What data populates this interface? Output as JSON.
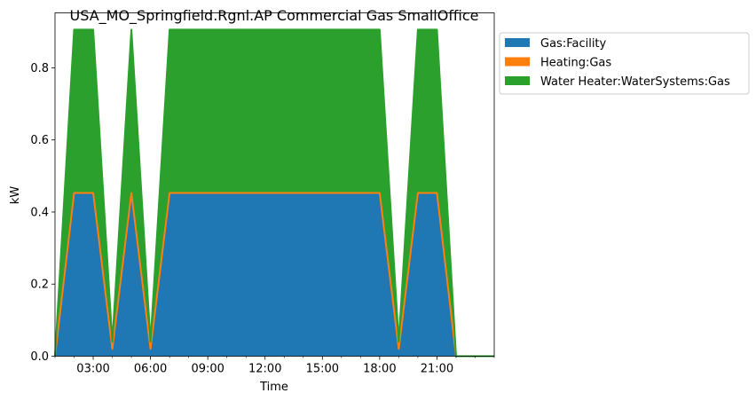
{
  "chart_data": {
    "type": "area",
    "stacked": true,
    "title": "USA_MO_Springfield.Rgnl.AP Commercial Gas SmallOffice",
    "xlabel": "Time",
    "ylabel": "kW",
    "xlim": [
      0,
      23
    ],
    "ylim": [
      0,
      0.9525
    ],
    "x": [
      0,
      1,
      2,
      3,
      4,
      5,
      6,
      7,
      8,
      9,
      10,
      11,
      12,
      13,
      14,
      15,
      16,
      17,
      18,
      19,
      20,
      21,
      22,
      23
    ],
    "x_ticks": [
      2,
      5,
      8,
      11,
      14,
      17,
      20
    ],
    "x_tick_labels": [
      "03:00",
      "06:00",
      "09:00",
      "12:00",
      "15:00",
      "18:00",
      "21:00"
    ],
    "y_ticks": [
      0.0,
      0.2,
      0.4,
      0.6,
      0.8
    ],
    "y_tick_labels": [
      "0.0",
      "0.2",
      "0.4",
      "0.6",
      "0.8"
    ],
    "grid": false,
    "legend_position": "outside upper right",
    "series": [
      {
        "name": "Gas:Facility",
        "color": "#1f77b4",
        "values": [
          0.0,
          0.453,
          0.453,
          0.02,
          0.453,
          0.02,
          0.453,
          0.453,
          0.453,
          0.453,
          0.453,
          0.453,
          0.453,
          0.453,
          0.453,
          0.453,
          0.453,
          0.453,
          0.02,
          0.453,
          0.453,
          0.0,
          0.0,
          0.0
        ]
      },
      {
        "name": "Heating:Gas",
        "color": "#ff7f0e",
        "values": [
          0.0,
          0.0,
          0.0,
          0.0,
          0.0,
          0.0,
          0.0,
          0.0,
          0.0,
          0.0,
          0.0,
          0.0,
          0.0,
          0.0,
          0.0,
          0.0,
          0.0,
          0.0,
          0.0,
          0.0,
          0.0,
          0.0,
          0.0,
          0.0
        ]
      },
      {
        "name": "Water Heater:WaterSystems:Gas",
        "color": "#2ca02c",
        "values": [
          0.0,
          0.453,
          0.453,
          0.02,
          0.453,
          0.02,
          0.453,
          0.453,
          0.453,
          0.453,
          0.453,
          0.453,
          0.453,
          0.453,
          0.453,
          0.453,
          0.453,
          0.453,
          0.02,
          0.453,
          0.453,
          0.0,
          0.0,
          0.0
        ]
      }
    ]
  }
}
